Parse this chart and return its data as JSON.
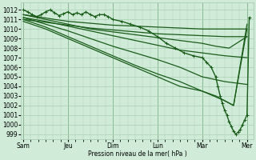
{
  "background_color": "#d0ecd8",
  "grid_color": "#a8ceb4",
  "line_color": "#1a5c1a",
  "ylabel": "Pression niveau de la mer( hPa )",
  "ylim": [
    998.5,
    1012.8
  ],
  "yticks": [
    999,
    1000,
    1001,
    1002,
    1003,
    1004,
    1005,
    1006,
    1007,
    1008,
    1009,
    1010,
    1011,
    1012
  ],
  "xtick_labels": [
    "Sam",
    "Jeu",
    "Dim",
    "Lun",
    "Mar",
    "Mer"
  ],
  "xtick_positions": [
    0,
    1,
    2,
    3,
    4,
    5
  ],
  "lines": [
    {
      "x": [
        0.0,
        0.3,
        0.7,
        1.0,
        1.5,
        2.0,
        2.5,
        3.0,
        3.5,
        4.0,
        4.5,
        5.0
      ],
      "y": [
        1011.5,
        1011.3,
        1011.0,
        1010.8,
        1010.6,
        1010.4,
        1010.3,
        1010.2,
        1010.1,
        1010.0,
        1010.0,
        1010.0
      ],
      "marker": false,
      "lw": 0.9
    },
    {
      "x": [
        0.0,
        0.5,
        1.0,
        1.5,
        2.0,
        2.5,
        3.0,
        3.5,
        4.0,
        4.5,
        5.0
      ],
      "y": [
        1011.0,
        1010.7,
        1010.4,
        1010.1,
        1009.9,
        1009.7,
        1009.5,
        1009.4,
        1009.3,
        1009.2,
        1009.2
      ],
      "marker": false,
      "lw": 0.9
    },
    {
      "x": [
        0.0,
        0.5,
        1.0,
        1.5,
        2.0,
        2.5,
        3.0,
        3.5,
        4.0,
        4.5,
        5.0
      ],
      "y": [
        1011.2,
        1010.5,
        1009.8,
        1009.0,
        1008.2,
        1007.5,
        1006.8,
        1006.0,
        1005.0,
        1004.5,
        1004.2
      ],
      "marker": false,
      "lw": 0.9
    },
    {
      "x": [
        0.0,
        0.5,
        1.0,
        1.5,
        2.0,
        2.5,
        3.0,
        3.5,
        4.0,
        4.5,
        4.7,
        5.0
      ],
      "y": [
        1011.0,
        1010.2,
        1009.2,
        1008.2,
        1007.2,
        1006.2,
        1005.3,
        1004.5,
        1003.5,
        1002.5,
        1002.0,
        1010.0
      ],
      "marker": false,
      "lw": 0.9
    },
    {
      "x": [
        0.0,
        0.1,
        0.2,
        0.3,
        0.4,
        0.5,
        0.6,
        0.7,
        0.8,
        0.9,
        1.0,
        1.1,
        1.2,
        1.3,
        1.4,
        1.5,
        1.6,
        1.7,
        1.8,
        1.9,
        2.0,
        2.2,
        2.4,
        2.6,
        2.8,
        3.0,
        3.2,
        3.4,
        3.6,
        3.8,
        4.0,
        4.1,
        4.2,
        4.3,
        4.35,
        4.4,
        4.45,
        4.5,
        4.55,
        4.6,
        4.65,
        4.7,
        4.75,
        4.8,
        4.85,
        4.9,
        4.95,
        5.0,
        5.05
      ],
      "y": [
        1012.0,
        1011.8,
        1011.5,
        1011.3,
        1011.5,
        1011.8,
        1012.0,
        1011.7,
        1011.4,
        1011.6,
        1011.8,
        1011.5,
        1011.7,
        1011.5,
        1011.8,
        1011.5,
        1011.3,
        1011.5,
        1011.5,
        1011.3,
        1011.0,
        1010.8,
        1010.5,
        1010.2,
        1009.8,
        1009.2,
        1008.5,
        1008.0,
        1007.5,
        1007.2,
        1007.0,
        1006.5,
        1006.0,
        1005.0,
        1004.0,
        1003.0,
        1002.2,
        1001.5,
        1001.0,
        1000.3,
        999.8,
        999.3,
        999.0,
        999.2,
        999.5,
        1000.0,
        1000.5,
        1001.0,
        1011.2
      ],
      "marker": true,
      "lw": 1.0
    },
    {
      "x": [
        0.0,
        0.5,
        1.0,
        1.5,
        2.0,
        2.5,
        3.0,
        3.5,
        4.0,
        4.3,
        4.6,
        5.0
      ],
      "y": [
        1011.5,
        1011.0,
        1010.5,
        1010.0,
        1009.7,
        1009.4,
        1009.1,
        1008.8,
        1008.5,
        1008.2,
        1008.0,
        1009.2
      ],
      "marker": false,
      "lw": 0.9
    },
    {
      "x": [
        0.0,
        0.5,
        1.0,
        1.5,
        2.0,
        2.5,
        3.0,
        3.5,
        4.0,
        4.3,
        4.5,
        4.7,
        5.0
      ],
      "y": [
        1010.8,
        1010.0,
        1009.0,
        1008.0,
        1007.0,
        1006.0,
        1005.0,
        1004.0,
        1003.5,
        1003.0,
        1002.5,
        1002.0,
        1010.5
      ],
      "marker": false,
      "lw": 0.9
    },
    {
      "x": [
        0.0,
        0.5,
        1.0,
        1.5,
        2.0,
        2.5,
        3.0,
        3.5,
        4.0,
        4.5,
        5.0
      ],
      "y": [
        1011.2,
        1010.8,
        1010.3,
        1009.8,
        1009.3,
        1008.8,
        1008.3,
        1007.8,
        1007.5,
        1007.2,
        1007.0
      ],
      "marker": false,
      "lw": 0.9
    }
  ]
}
